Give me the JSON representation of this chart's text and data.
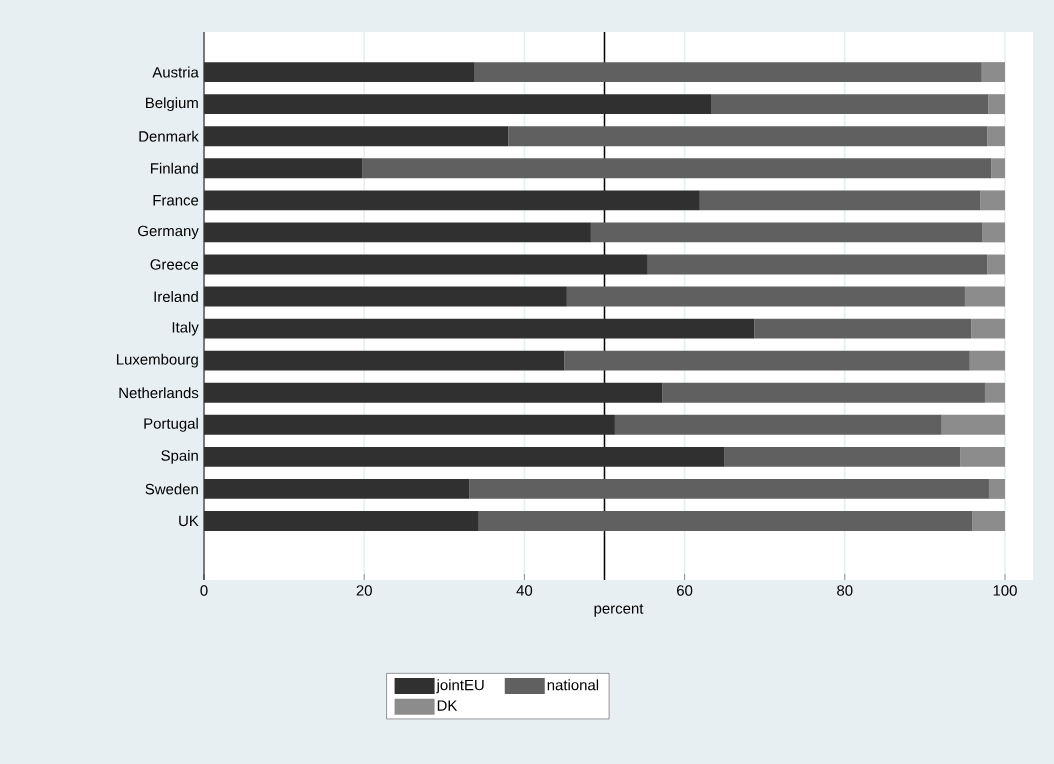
{
  "chart_data": {
    "type": "bar",
    "orientation": "horizontal",
    "stacked": true,
    "xlabel": "percent",
    "categories": [
      "Austria",
      "Belgium",
      "Denmark",
      "Finland",
      "France",
      "Germany",
      "Greece",
      "Ireland",
      "Italy",
      "Luxembourg",
      "Netherlands",
      "Portugal",
      "Spain",
      "Sweden",
      "UK"
    ],
    "series": [
      {
        "name": "jointEU",
        "color": "#303030",
        "values": [
          33.8,
          63.3,
          38.0,
          19.8,
          61.9,
          48.3,
          55.4,
          45.3,
          68.7,
          45.0,
          57.2,
          51.3,
          65.0,
          33.1,
          34.3
        ]
      },
      {
        "name": "national",
        "color": "#606060",
        "values": [
          63.3,
          34.6,
          59.8,
          78.5,
          35.0,
          48.9,
          42.4,
          49.7,
          27.1,
          50.6,
          40.3,
          40.8,
          29.4,
          64.9,
          61.6
        ]
      },
      {
        "name": "DK",
        "color": "#8c8c8c",
        "values": [
          2.9,
          2.1,
          2.2,
          1.7,
          3.1,
          2.8,
          2.2,
          5.0,
          4.2,
          4.4,
          2.5,
          7.9,
          5.6,
          2.0,
          4.1
        ]
      }
    ],
    "xlim": [
      0,
      103.5
    ],
    "xticks": [
      0,
      20,
      40,
      60,
      80,
      100
    ],
    "ref_lines": [
      {
        "axis": "x",
        "value": 50,
        "color": "#000000"
      }
    ],
    "grid": "x",
    "legend": "bottom"
  }
}
